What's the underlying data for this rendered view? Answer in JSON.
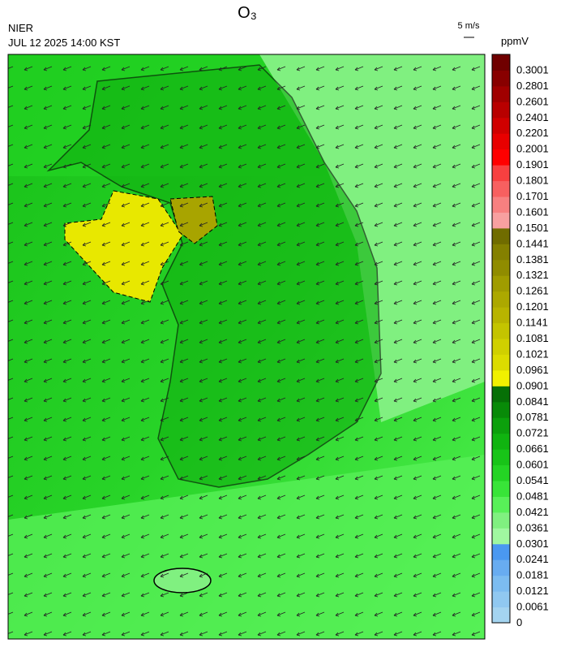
{
  "title": "O₃",
  "agency": "NIER",
  "datetime": "JUL 12 2025 14:00 KST",
  "wind_scale": "5 m/s",
  "unit": "ppmV",
  "colorbar": {
    "labels": [
      "0",
      "0.0061",
      "0.0121",
      "0.0181",
      "0.0241",
      "0.0301",
      "0.0361",
      "0.0421",
      "0.0481",
      "0.0541",
      "0.0601",
      "0.0661",
      "0.0721",
      "0.0781",
      "0.0841",
      "0.0901",
      "0.0961",
      "0.1021",
      "0.1081",
      "0.1141",
      "0.1201",
      "0.1261",
      "0.1321",
      "0.1381",
      "0.1441",
      "0.1501",
      "0.1601",
      "0.1701",
      "0.1801",
      "0.1901",
      "0.2001",
      "0.2201",
      "0.2401",
      "0.2601",
      "0.2801",
      "0.3001"
    ],
    "colors": [
      "#a4d4f0",
      "#90c8f0",
      "#7cbcf0",
      "#68acf0",
      "#4a98f0",
      "#a0f8a0",
      "#80f080",
      "#58f058",
      "#38e438",
      "#24d424",
      "#18c418",
      "#10b410",
      "#0ca00c",
      "#088a08",
      "#067006",
      "#f0f000",
      "#dcdc00",
      "#d0d000",
      "#c4c400",
      "#b8b400",
      "#aca800",
      "#a09c00",
      "#908c00",
      "#848000",
      "#706c00",
      "#f8a0a0",
      "#f88080",
      "#f86060",
      "#f84040",
      "#ff0000",
      "#e80000",
      "#d00000",
      "#b80000",
      "#a00000",
      "#880000",
      "#700000"
    ]
  }
}
